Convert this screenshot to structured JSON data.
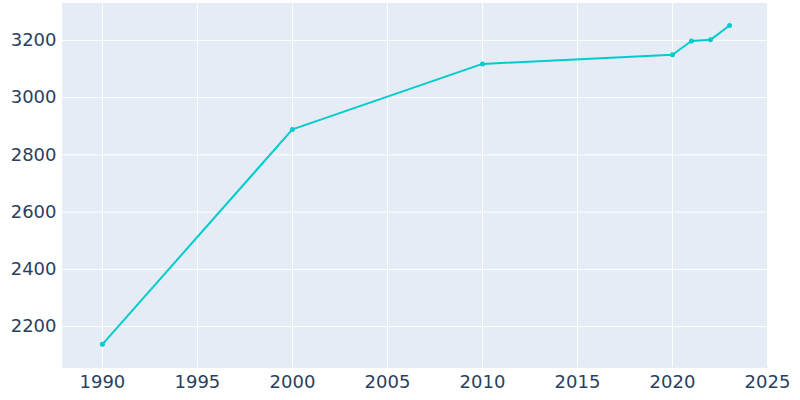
{
  "chart_data": {
    "type": "line",
    "x": [
      1990,
      2000,
      2010,
      2020,
      2021,
      2022,
      2023
    ],
    "values": [
      2138,
      2889,
      3118,
      3150,
      3198,
      3202,
      3252
    ],
    "color": "#00cccc",
    "marker": "circle",
    "line_style": "solid",
    "xlim": [
      1987.9,
      2025
    ],
    "ylim": [
      2057,
      3329
    ],
    "xticks": [
      1990,
      1995,
      2000,
      2005,
      2010,
      2015,
      2020,
      2025
    ],
    "yticks": [
      2200,
      2400,
      2600,
      2800,
      3000,
      3200
    ],
    "grid": true
  }
}
